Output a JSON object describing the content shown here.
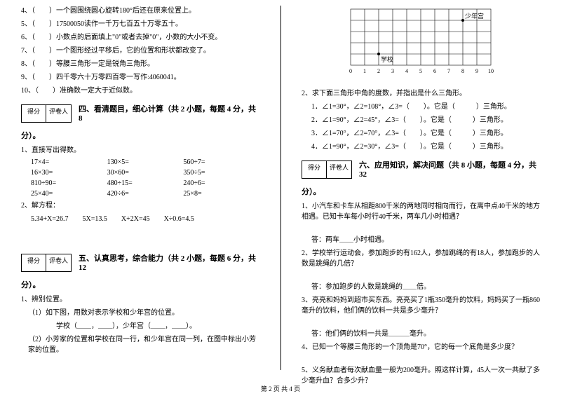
{
  "left": {
    "judgments": [
      "4、（　　）一个圆围绕圆心旋转180°后还在原来位置上。",
      "5、（　　）17500050读作一千万七百五十万零五十。",
      "6、（　　）小数点的后面填上\"0\"或者去掉\"0\"，小数的大小不变。",
      "7、（　　）一个图形经过平移后，它的位置和形状都改变了。",
      "8、（　　）等腰三角形一定是锐角三角形。",
      "9、（　　）四千零六十万零四百零一写作:4060041。",
      "10、（　　）准确数一定大于近似数。"
    ],
    "scoreLabels": {
      "a": "得分",
      "b": "评卷人"
    },
    "section4Title": "四、看清题目，细心计算（共 2 小题，每题 4 分，共 8",
    "section4Title2": "分）。",
    "calc1Label": "1、直接写出得数。",
    "calcRows": [
      [
        "17×4=",
        "130×5=",
        "560÷7="
      ],
      [
        "16×30=",
        "30×60=",
        "350÷5="
      ],
      [
        "810÷90=",
        "480÷15=",
        "240÷6="
      ],
      [
        "25×40=",
        "420÷6=",
        "25×8="
      ]
    ],
    "calc2Label": "2、解方程：",
    "equations": "5.34+X=26.7　　5X=13.5　　X+2X=45　　X÷0.6=4.5",
    "section5Title": "五、认真思考，综合能力（共 2 小题，每题 6 分，共 12",
    "section5Title2": "分）。",
    "pos1": "1、辨别位置。",
    "pos1a": "（1）如下图，用数对表示学校和少年宫的位置。",
    "pos1b": "学校（＿＿，＿＿），少年宫（＿＿，＿＿）。",
    "pos1c": "（2）小芳家的位置和学校在同一行，和少年宫在同一列，在图中标出小芳家的位置。"
  },
  "right": {
    "gridLabels": {
      "school": "学校",
      "youth": "少年宫"
    },
    "tri1": "2、求下面三角形中角的度数，并指出是什么三角形。",
    "triRows": [
      "1．∠1=30°，∠2=108°，∠3=（　　）。它是（　　　）三角形。",
      "2．∠1=90°，∠2=45°，∠3=（　　）。它是（　　　）三角形。",
      "3．∠1=70°，∠2=70°，∠3=（　　）。它是（　　　）三角形。",
      "4．∠1=90°，∠2=30°，∠3=（　　）。它是（　　　）三角形。"
    ],
    "section6Title": "六、应用知识，解决问题（共 8 小题，每题 4 分，共 32",
    "section6Title2": "分）。",
    "q1": "1、小汽车和卡车从相距800千米的两地同时相向而行，在离中点40千米的地方相遇。已知卡车每小时行40千米，两车几小时相遇？",
    "a1": "答：两车＿＿小时相遇。",
    "q2": "2、学校举行运动会，参加跑步的有162人，参加跳绳的有18人，参加跑步的人数是跳绳的几倍？",
    "a2": "答：参加跑步的人数是跳绳的＿＿倍。",
    "q3": "3、亮亮和妈妈到超市买东西。亮亮买了1瓶350毫升的饮料，妈妈买了一瓶860毫升的饮料，他们俩的饮料一共是多少毫升？",
    "a3": "答：他们俩的饮料一共是＿＿＿毫升。",
    "q4": "4、已知一个等腰三角形的一个顶角是70°，它的每一个底角是多少度？",
    "q5": "5、义务献血者每次献血量一般为200毫升。照这样计算，45人一次一共献了多少毫升血？合多少升？"
  },
  "footer": "第 2 页 共 4 页"
}
